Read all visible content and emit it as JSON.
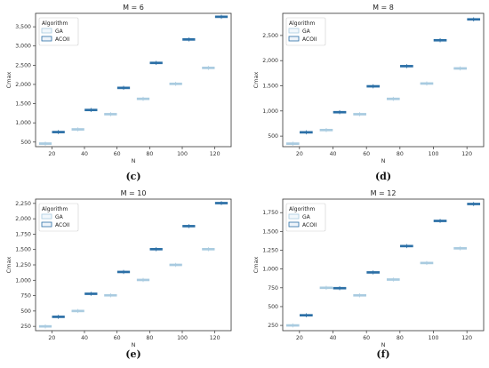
{
  "colors": {
    "ga": "#a9cbe0",
    "acoii": "#2b6fa6",
    "axis": "#333333"
  },
  "chart_data": [
    {
      "type": "box",
      "title": "M = 6",
      "sub_label": "(c)",
      "xlabel": "N",
      "ylabel": "Cmax",
      "categories": [
        "20",
        "40",
        "60",
        "80",
        "100",
        "120"
      ],
      "ylim": [
        380,
        3850
      ],
      "yticks": [
        500,
        1000,
        1500,
        2000,
        2500,
        3000,
        3500
      ],
      "ytick_labels": [
        "500",
        "1,000",
        "1,500",
        "2,000",
        "2,500",
        "3,000",
        "3,500"
      ],
      "legend": {
        "title": "Algorithm",
        "entries": [
          "GA",
          "ACOII"
        ],
        "position": "upper-left"
      },
      "series": [
        {
          "name": "GA",
          "values": [
            460,
            830,
            1225,
            1625,
            2015,
            2430
          ]
        },
        {
          "name": "ACOII",
          "values": [
            760,
            1335,
            1910,
            2560,
            3170,
            3760
          ]
        }
      ]
    },
    {
      "type": "box",
      "title": "M = 8",
      "sub_label": "(d)",
      "xlabel": "N",
      "ylabel": "Cmax",
      "categories": [
        "20",
        "40",
        "60",
        "80",
        "100",
        "120"
      ],
      "ylim": [
        290,
        2940
      ],
      "yticks": [
        500,
        1000,
        1500,
        2000,
        2500
      ],
      "ytick_labels": [
        "500",
        "1,000",
        "1,500",
        "2,000",
        "2,500"
      ],
      "legend": {
        "title": "Algorithm",
        "entries": [
          "GA",
          "ACOII"
        ],
        "position": "upper-left"
      },
      "series": [
        {
          "name": "GA",
          "values": [
            350,
            620,
            935,
            1240,
            1545,
            1845
          ]
        },
        {
          "name": "ACOII",
          "values": [
            575,
            975,
            1490,
            1890,
            2405,
            2820
          ]
        }
      ]
    },
    {
      "type": "box",
      "title": "M = 10",
      "sub_label": "(e)",
      "xlabel": "N",
      "ylabel": "Cmax",
      "categories": [
        "20",
        "40",
        "60",
        "80",
        "100",
        "120"
      ],
      "ylim": [
        180,
        2320
      ],
      "yticks": [
        250,
        500,
        750,
        1000,
        1250,
        1500,
        1750,
        2000,
        2250
      ],
      "ytick_labels": [
        "250",
        "500",
        "750",
        "1,000",
        "1,250",
        "1,500",
        "1,750",
        "2,000",
        "2,250"
      ],
      "legend": {
        "title": "Algorithm",
        "entries": [
          "GA",
          "ACOII"
        ],
        "position": "upper-left"
      },
      "series": [
        {
          "name": "GA",
          "values": [
            250,
            500,
            755,
            1005,
            1250,
            1505
          ]
        },
        {
          "name": "ACOII",
          "values": [
            405,
            780,
            1135,
            1505,
            1880,
            2255
          ]
        }
      ]
    },
    {
      "type": "box",
      "title": "M = 12",
      "sub_label": "(f)",
      "xlabel": "N",
      "ylabel": "Cmax",
      "categories": [
        "20",
        "40",
        "60",
        "80",
        "100",
        "120"
      ],
      "ylim": [
        180,
        1930
      ],
      "yticks": [
        250,
        500,
        750,
        1000,
        1250,
        1500,
        1750
      ],
      "ytick_labels": [
        "250",
        "500",
        "750",
        "1,000",
        "1,250",
        "1,500",
        "1,750"
      ],
      "legend": {
        "title": "Algorithm",
        "entries": [
          "GA",
          "ACOII"
        ],
        "position": "upper-left"
      },
      "series": [
        {
          "name": "GA",
          "values": [
            250,
            750,
            650,
            860,
            1080,
            1275
          ]
        },
        {
          "name": "ACOII",
          "values": [
            385,
            745,
            955,
            1305,
            1640,
            1865
          ]
        }
      ]
    }
  ]
}
